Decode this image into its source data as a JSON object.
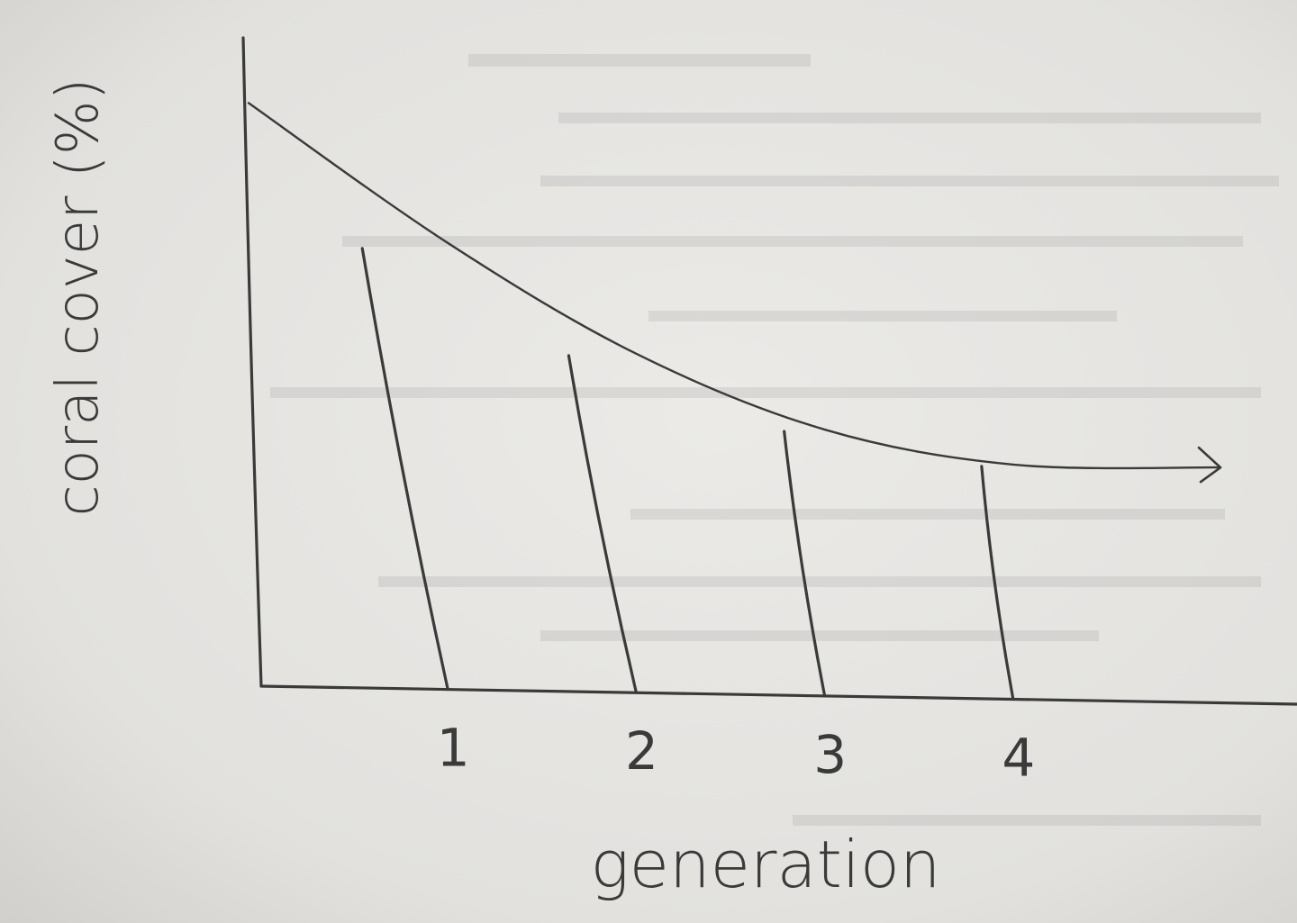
{
  "chart_data": {
    "type": "line",
    "title": "",
    "xlabel": "generation",
    "ylabel": "coral cover (%)",
    "x_ticks": [
      "1",
      "2",
      "3",
      "4"
    ],
    "x": [
      0,
      1,
      2,
      3,
      4
    ],
    "series": [
      {
        "values": [
          100,
          76,
          57,
          44,
          38
        ]
      }
    ],
    "xlim": [
      0,
      5.1
    ],
    "ylim": [
      0,
      105
    ],
    "vertical_lines_at_ticks": true,
    "axis_arrow_on_curve_end": true,
    "hand_drawn": true,
    "grid": false,
    "colors": {
      "ink": "#3a3a3a",
      "paper": "#e4e3e0"
    }
  }
}
